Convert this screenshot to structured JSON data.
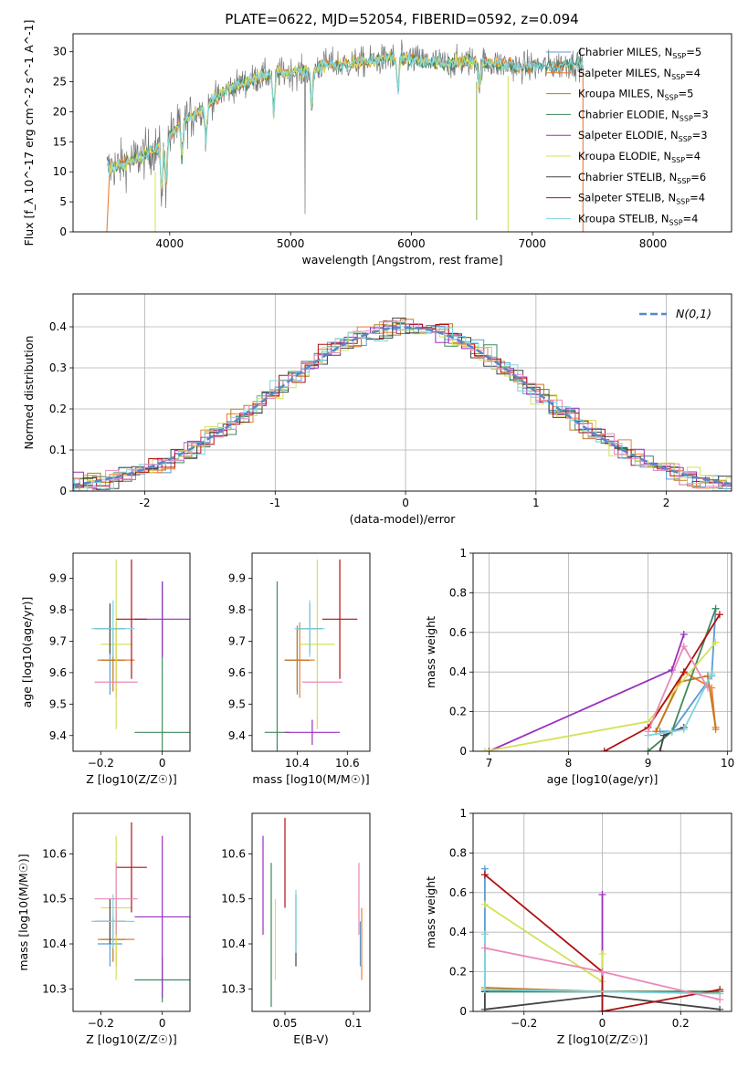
{
  "title": "PLATE=0622, MJD=52054, FIBERID=0592, z=0.094",
  "colors": {
    "Chabrier MILES": "#5b9bd5",
    "Salpeter MILES": "#ed7d31",
    "Kroupa MILES": "#c07a20",
    "Chabrier ELODIE": "#3e8a5a",
    "Salpeter ELODIE": "#9a2fbf",
    "Kroupa ELODIE": "#d4e157",
    "Chabrier STELIB": "#444444",
    "Salpeter STELIB": "#b01010",
    "Kroupa STELIB": "#7fd4e0",
    "pink": "#e88ab8",
    "gauss": "#5588cc"
  },
  "chart_data": [
    {
      "type": "line",
      "name": "spectrum",
      "xlabel": "wavelength [Angstrom, rest frame]",
      "ylabel": "Flux [f_λ 10^-17 erg cm^-2 s^-1 A^-1]",
      "xlim": [
        3200,
        8650
      ],
      "ylim": [
        0,
        33
      ],
      "xticks": [
        4000,
        5000,
        6000,
        7000,
        8000
      ],
      "yticks": [
        0,
        5,
        10,
        15,
        20,
        25,
        30
      ],
      "legend": [
        {
          "name": "Chabrier MILES, N_SSP=5",
          "key": "Chabrier MILES"
        },
        {
          "name": "Salpeter MILES, N_SSP=4",
          "key": "Salpeter MILES"
        },
        {
          "name": "Kroupa MILES, N_SSP=5",
          "key": "Kroupa MILES"
        },
        {
          "name": "Chabrier ELODIE, N_SSP=3",
          "key": "Chabrier ELODIE"
        },
        {
          "name": "Salpeter ELODIE, N_SSP=3",
          "key": "Salpeter ELODIE"
        },
        {
          "name": "Kroupa ELODIE, N_SSP=4",
          "key": "Kroupa ELODIE"
        },
        {
          "name": "Chabrier STELIB, N_SSP=6",
          "key": "Chabrier STELIB"
        },
        {
          "name": "Salpeter STELIB, N_SSP=4",
          "key": "Salpeter STELIB"
        },
        {
          "name": "Kroupa STELIB, N_SSP=4",
          "key": "Kroupa STELIB"
        }
      ],
      "legend_position": "right",
      "continuum": {
        "x": [
          3480,
          3700,
          3900,
          4100,
          4300,
          4500,
          4700,
          4900,
          5100,
          5300,
          5500,
          5700,
          5900,
          6100,
          6300,
          6500,
          6700,
          6900,
          7100,
          7300,
          7400
        ],
        "y": [
          10.5,
          12,
          14,
          18,
          21,
          24,
          25.5,
          26.5,
          26.5,
          28,
          28,
          28.5,
          29,
          28.5,
          28,
          28.5,
          28,
          27.5,
          27.5,
          28,
          28
        ]
      }
    },
    {
      "type": "histogram",
      "name": "residuals",
      "xlabel": "(data-model)/error",
      "ylabel": "Normed distribution",
      "xlim": [
        -2.55,
        2.5
      ],
      "ylim": [
        0,
        0.48
      ],
      "xticks": [
        -2,
        -1,
        0,
        1,
        2
      ],
      "yticks": [
        0.0,
        0.1,
        0.2,
        0.3,
        0.4
      ],
      "legend_label": "N(0,1)",
      "legend_position": "top-right",
      "grid": true
    },
    {
      "type": "errorbar",
      "name": "age-vs-Z",
      "xlabel": "Z [log10(Z/Z☉)]",
      "ylabel": "age  [log10(age/yr)]",
      "xlim": [
        -0.29,
        0.09
      ],
      "ylim": [
        9.35,
        9.98
      ],
      "xticks": [
        -0.2,
        0.0
      ],
      "yticks": [
        9.4,
        9.5,
        9.6,
        9.7,
        9.8,
        9.9
      ],
      "points": [
        {
          "key": "Chabrier MILES",
          "x": -0.17,
          "y": 9.64,
          "xerr": 0.04,
          "yerr": 0.11
        },
        {
          "key": "Salpeter MILES",
          "x": -0.15,
          "y": 9.64,
          "xerr": 0.06,
          "yerr": 0.12
        },
        {
          "key": "Kroupa MILES",
          "x": -0.16,
          "y": 9.64,
          "xerr": 0.04,
          "yerr": 0.1
        },
        {
          "key": "Chabrier ELODIE",
          "x": 0.0,
          "y": 9.41,
          "xerr": 0.09,
          "yerr": 0.48
        },
        {
          "key": "Salpeter ELODIE",
          "x": 0.0,
          "y": 9.77,
          "xerr": 0.09,
          "yerr": 0.12
        },
        {
          "key": "Kroupa ELODIE",
          "x": -0.15,
          "y": 9.69,
          "xerr": 0.05,
          "yerr": 0.27
        },
        {
          "key": "Chabrier STELIB",
          "x": -0.17,
          "y": 9.74,
          "xerr": 0.05,
          "yerr": 0.08
        },
        {
          "key": "Salpeter STELIB",
          "x": -0.1,
          "y": 9.77,
          "xerr": 0.05,
          "yerr": 0.19
        },
        {
          "key": "Kroupa STELIB",
          "x": -0.16,
          "y": 9.74,
          "xerr": 0.07,
          "yerr": 0.09
        },
        {
          "key": "pink",
          "x": -0.15,
          "y": 9.57,
          "xerr": 0.07,
          "yerr": 0.0
        }
      ]
    },
    {
      "type": "errorbar",
      "name": "age-vs-mass",
      "xlabel": "mass [log10(M/M☉)]",
      "ylabel": "",
      "xlim": [
        10.22,
        10.69
      ],
      "ylim": [
        9.35,
        9.98
      ],
      "xticks": [
        10.4,
        10.6
      ],
      "yticks": [
        9.4,
        9.5,
        9.6,
        9.7,
        9.8,
        9.9
      ],
      "points": [
        {
          "key": "Chabrier MILES",
          "x": 10.4,
          "y": 9.64,
          "xerr": 0.05,
          "yerr": 0.11
        },
        {
          "key": "Salpeter MILES",
          "x": 10.41,
          "y": 9.64,
          "xerr": 0.06,
          "yerr": 0.12
        },
        {
          "key": "Kroupa MILES",
          "x": 10.4,
          "y": 9.64,
          "xerr": 0.05,
          "yerr": 0.1
        },
        {
          "key": "Chabrier ELODIE",
          "x": 10.32,
          "y": 9.41,
          "xerr": 0.05,
          "yerr": 0.48
        },
        {
          "key": "Salpeter ELODIE",
          "x": 10.46,
          "y": 9.41,
          "xerr": 0.11,
          "yerr": 0.04
        },
        {
          "key": "Kroupa ELODIE",
          "x": 10.48,
          "y": 9.69,
          "xerr": 0.07,
          "yerr": 0.27
        },
        {
          "key": "Chabrier STELIB",
          "x": 10.45,
          "y": 9.74,
          "xerr": 0.05,
          "yerr": 0.08
        },
        {
          "key": "Salpeter STELIB",
          "x": 10.57,
          "y": 9.77,
          "xerr": 0.07,
          "yerr": 0.19
        },
        {
          "key": "Kroupa STELIB",
          "x": 10.45,
          "y": 9.74,
          "xerr": 0.06,
          "yerr": 0.09
        },
        {
          "key": "pink",
          "x": 10.5,
          "y": 9.57,
          "xerr": 0.08,
          "yerr": 0.0
        }
      ]
    },
    {
      "type": "line",
      "name": "mass-weight-vs-age",
      "xlabel": "age  [log10(age/yr)]",
      "ylabel": "mass weight",
      "xlim": [
        6.8,
        10.05
      ],
      "ylim": [
        0,
        1
      ],
      "xticks": [
        7,
        8,
        9,
        10
      ],
      "yticks": [
        0.0,
        0.2,
        0.4,
        0.6,
        0.8,
        1.0
      ],
      "grid": true,
      "series": [
        {
          "key": "Chabrier MILES",
          "x": [
            9.15,
            9.3,
            9.8,
            9.85
          ],
          "y": [
            0.1,
            0.1,
            0.38,
            0.72
          ]
        },
        {
          "key": "Salpeter MILES",
          "x": [
            9.1,
            9.45,
            9.8,
            9.85
          ],
          "y": [
            0.1,
            0.4,
            0.32,
            0.11
          ]
        },
        {
          "key": "Kroupa MILES",
          "x": [
            9.1,
            9.4,
            9.75,
            9.85
          ],
          "y": [
            0.1,
            0.35,
            0.38,
            0.12
          ]
        },
        {
          "key": "Chabrier ELODIE",
          "x": [
            9.0,
            9.3,
            9.85
          ],
          "y": [
            0.0,
            0.1,
            0.72
          ]
        },
        {
          "key": "Salpeter ELODIE",
          "x": [
            7.0,
            9.3,
            9.45
          ],
          "y": [
            0.0,
            0.41,
            0.59
          ]
        },
        {
          "key": "Kroupa ELODIE",
          "x": [
            6.95,
            9.0,
            9.85
          ],
          "y": [
            0.0,
            0.15,
            0.55
          ]
        },
        {
          "key": "Chabrier STELIB",
          "x": [
            9.15,
            9.2,
            9.3,
            9.45
          ],
          "y": [
            0.0,
            0.08,
            0.1,
            0.12
          ]
        },
        {
          "key": "Salpeter STELIB",
          "x": [
            8.45,
            9.0,
            9.45,
            9.9
          ],
          "y": [
            0.0,
            0.12,
            0.4,
            0.69
          ]
        },
        {
          "key": "Kroupa STELIB",
          "x": [
            9.0,
            9.3,
            9.45,
            9.8
          ],
          "y": [
            0.08,
            0.1,
            0.11,
            0.39
          ]
        },
        {
          "key": "pink",
          "x": [
            9.0,
            9.45,
            9.75
          ],
          "y": [
            0.1,
            0.53,
            0.32
          ]
        }
      ]
    },
    {
      "type": "errorbar",
      "name": "mass-vs-Z",
      "xlabel": "Z [log10(Z/Z☉)]",
      "ylabel": "mass [log10(M/M☉)]",
      "xlim": [
        -0.29,
        0.09
      ],
      "ylim": [
        10.25,
        10.69
      ],
      "xticks": [
        -0.2,
        0.0
      ],
      "yticks": [
        10.3,
        10.4,
        10.5,
        10.6
      ],
      "points": [
        {
          "key": "Chabrier MILES",
          "x": -0.17,
          "y": 10.4,
          "xerr": 0.04,
          "yerr": 0.05
        },
        {
          "key": "Salpeter MILES",
          "x": -0.15,
          "y": 10.41,
          "xerr": 0.06,
          "yerr": 0.06
        },
        {
          "key": "Kroupa MILES",
          "x": -0.16,
          "y": 10.41,
          "xerr": 0.04,
          "yerr": 0.05
        },
        {
          "key": "Chabrier ELODIE",
          "x": 0.0,
          "y": 10.32,
          "xerr": 0.09,
          "yerr": 0.05
        },
        {
          "key": "Salpeter ELODIE",
          "x": 0.0,
          "y": 10.46,
          "xerr": 0.09,
          "yerr": 0.18
        },
        {
          "key": "Kroupa ELODIE",
          "x": -0.15,
          "y": 10.48,
          "xerr": 0.05,
          "yerr": 0.16
        },
        {
          "key": "Chabrier STELIB",
          "x": -0.17,
          "y": 10.45,
          "xerr": 0.05,
          "yerr": 0.05
        },
        {
          "key": "Salpeter STELIB",
          "x": -0.1,
          "y": 10.57,
          "xerr": 0.05,
          "yerr": 0.1
        },
        {
          "key": "Kroupa STELIB",
          "x": -0.16,
          "y": 10.45,
          "xerr": 0.07,
          "yerr": 0.06
        },
        {
          "key": "pink",
          "x": -0.15,
          "y": 10.5,
          "xerr": 0.07,
          "yerr": 0.08
        }
      ]
    },
    {
      "type": "errorbar",
      "name": "mass-vs-EBV",
      "xlabel": "E(B-V)",
      "ylabel": "",
      "xlim": [
        0.026,
        0.112
      ],
      "ylim": [
        10.25,
        10.69
      ],
      "xticks": [
        0.05,
        0.1
      ],
      "yticks": [
        10.3,
        10.4,
        10.5,
        10.6
      ],
      "points": [
        {
          "key": "Salpeter ELODIE",
          "x": 0.034,
          "y": 10.53,
          "xerr": 0.0,
          "yerr": 0.11
        },
        {
          "key": "Chabrier ELODIE",
          "x": 0.04,
          "y": 10.42,
          "xerr": 0.0,
          "yerr": 0.16
        },
        {
          "key": "Kroupa ELODIE",
          "x": 0.043,
          "y": 10.41,
          "xerr": 0.0,
          "yerr": 0.09
        },
        {
          "key": "Salpeter STELIB",
          "x": 0.05,
          "y": 10.58,
          "xerr": 0.0,
          "yerr": 0.1
        },
        {
          "key": "Chabrier STELIB",
          "x": 0.058,
          "y": 10.43,
          "xerr": 0.0,
          "yerr": 0.08
        },
        {
          "key": "Kroupa STELIB",
          "x": 0.058,
          "y": 10.45,
          "xerr": 0.0,
          "yerr": 0.07
        },
        {
          "key": "pink",
          "x": 0.104,
          "y": 10.5,
          "xerr": 0.0,
          "yerr": 0.08
        },
        {
          "key": "Salpeter MILES",
          "x": 0.106,
          "y": 10.4,
          "xerr": 0.0,
          "yerr": 0.08
        },
        {
          "key": "Chabrier MILES",
          "x": 0.105,
          "y": 10.4,
          "xerr": 0.0,
          "yerr": 0.05
        }
      ]
    },
    {
      "type": "line",
      "name": "mass-weight-vs-Z",
      "xlabel": "Z [log10(Z/Z☉)]",
      "ylabel": "mass weight",
      "xlim": [
        -0.33,
        0.33
      ],
      "ylim": [
        0,
        1
      ],
      "xticks": [
        -0.2,
        0.0,
        0.2
      ],
      "yticks": [
        0.0,
        0.2,
        0.4,
        0.6,
        0.8,
        1.0
      ],
      "grid": true,
      "series": [
        {
          "key": "Chabrier MILES",
          "x": [
            -0.3,
            -0.3,
            0.3
          ],
          "y": [
            0.72,
            0.1,
            0.1
          ]
        },
        {
          "key": "Salpeter MILES",
          "x": [
            -0.3,
            0.0,
            0.3
          ],
          "y": [
            0.11,
            0.1,
            0.1
          ]
        },
        {
          "key": "Kroupa MILES",
          "x": [
            -0.3,
            0.0,
            0.3
          ],
          "y": [
            0.12,
            0.1,
            0.1
          ]
        },
        {
          "key": "Chabrier ELODIE",
          "x": [
            -0.3,
            0.0,
            0.3
          ],
          "y": [
            0.1,
            0.1,
            0.1
          ]
        },
        {
          "key": "Salpeter ELODIE",
          "x": [
            0.0,
            0.0
          ],
          "y": [
            0.59,
            0.0
          ]
        },
        {
          "key": "Kroupa ELODIE",
          "x": [
            -0.3,
            0.0,
            0.0
          ],
          "y": [
            0.54,
            0.15,
            0.29
          ]
        },
        {
          "key": "Chabrier STELIB",
          "x": [
            -0.3,
            -0.3,
            0.0,
            0.3
          ],
          "y": [
            0.1,
            0.01,
            0.08,
            0.01
          ]
        },
        {
          "key": "Salpeter STELIB",
          "x": [
            -0.3,
            0.0,
            0.0,
            0.3
          ],
          "y": [
            0.69,
            0.2,
            0.0,
            0.11
          ]
        },
        {
          "key": "Kroupa STELIB",
          "x": [
            -0.3,
            -0.3,
            0.3
          ],
          "y": [
            0.39,
            0.11,
            0.09
          ]
        },
        {
          "key": "pink",
          "x": [
            -0.3,
            0.0,
            0.3
          ],
          "y": [
            0.32,
            0.2,
            0.06
          ]
        }
      ]
    }
  ]
}
